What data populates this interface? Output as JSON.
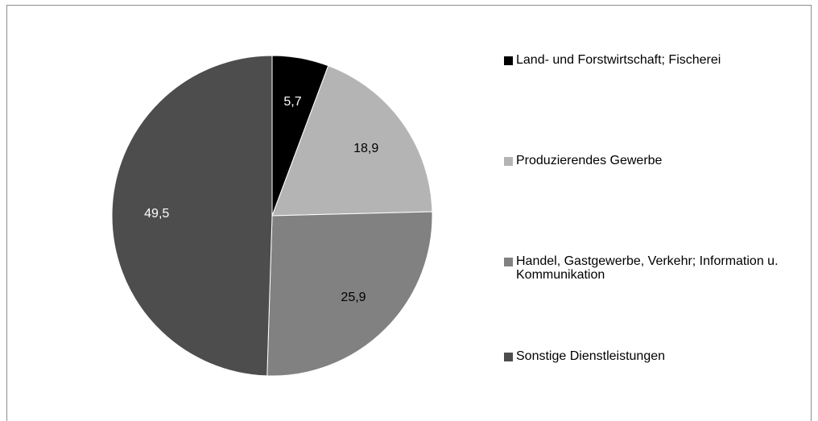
{
  "chart_data": {
    "type": "pie",
    "title": "",
    "start_angle_deg": 0,
    "direction": "clockwise",
    "slices": [
      {
        "label": "Land- und Forstwirtschaft; Fischerei",
        "value": 5.7,
        "value_label": "5,7",
        "color": "#000000",
        "label_color": "#ffffff"
      },
      {
        "label": "Produzierendes Gewerbe",
        "value": 18.9,
        "value_label": "18,9",
        "color": "#b4b4b4",
        "label_color": "#000000"
      },
      {
        "label": "Handel, Gastgewerbe, Verkehr; Information u. Kommunikation",
        "value": 25.9,
        "value_label": "25,9",
        "color": "#818181",
        "label_color": "#000000"
      },
      {
        "label": "Sonstige Dienstleistungen",
        "value": 49.5,
        "value_label": "49,5",
        "color": "#4d4d4d",
        "label_color": "#ffffff"
      }
    ],
    "legend_position": "right"
  }
}
